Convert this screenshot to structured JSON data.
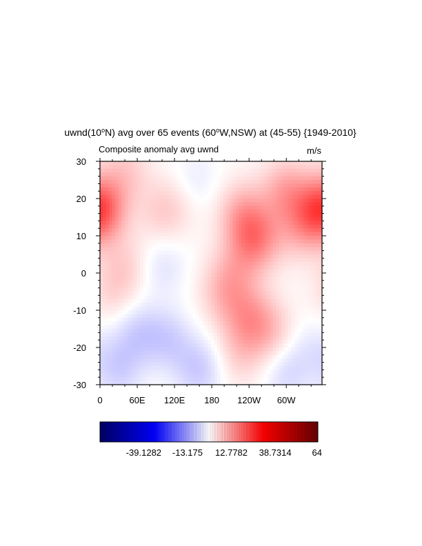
{
  "chart_data": {
    "type": "heatmap",
    "title_prefix": "uwnd(10",
    "title_degree": "o",
    "title_mid": "N) avg over 65 events (60",
    "title_degree2": "o",
    "title_suffix": "W,NSW) at (45-55) {1949-2010}",
    "left_subtitle": "Composite anomaly avg uwnd",
    "right_subtitle": "m/s",
    "x_ticks": [
      "0",
      "60E",
      "120E",
      "180",
      "120W",
      "60W"
    ],
    "x_tick_lon": [
      0,
      60,
      120,
      180,
      240,
      300
    ],
    "x_range": [
      0,
      357.5
    ],
    "y_ticks": [
      "30",
      "20",
      "10",
      "0",
      "-10",
      "-20",
      "-30"
    ],
    "y_tick_vals": [
      30,
      20,
      10,
      0,
      -10,
      -20,
      -30
    ],
    "y_range": [
      -30,
      30
    ],
    "colorbar": {
      "labels": [
        "-39.1282",
        "-13.175",
        "12.7782",
        "38.7314",
        "64"
      ],
      "label_vals": [
        -39.1282,
        -13.175,
        12.7782,
        38.7314,
        64
      ],
      "range": [
        -65,
        64
      ],
      "colors": [
        "#000066",
        "#0000ff",
        "#ffffff",
        "#ff0000",
        "#660000"
      ]
    },
    "field_blobs": [
      {
        "lon": 0,
        "lat": 17,
        "v": 11
      },
      {
        "lon": 357,
        "lat": 17,
        "v": 11
      },
      {
        "lon": 40,
        "lat": 27,
        "v": 6
      },
      {
        "lon": 100,
        "lat": 16,
        "v": 5
      },
      {
        "lon": 130,
        "lat": 20,
        "v": 3
      },
      {
        "lon": 250,
        "lat": 9,
        "v": 14
      },
      {
        "lon": 230,
        "lat": 16,
        "v": 9
      },
      {
        "lon": 300,
        "lat": 22,
        "v": 10
      },
      {
        "lon": 320,
        "lat": 12,
        "v": 7
      },
      {
        "lon": 215,
        "lat": 0,
        "v": 6
      },
      {
        "lon": 200,
        "lat": -6,
        "v": 6
      },
      {
        "lon": 240,
        "lat": -12,
        "v": 10
      },
      {
        "lon": 275,
        "lat": -16,
        "v": 6
      },
      {
        "lon": 225,
        "lat": -22,
        "v": 5
      },
      {
        "lon": 40,
        "lat": 2,
        "v": 5
      },
      {
        "lon": 20,
        "lat": -6,
        "v": 4
      },
      {
        "lon": 150,
        "lat": 24,
        "v": -4
      },
      {
        "lon": 100,
        "lat": 2,
        "v": -4
      },
      {
        "lon": 60,
        "lat": -16,
        "v": -6
      },
      {
        "lon": 110,
        "lat": -18,
        "v": -6
      },
      {
        "lon": 30,
        "lat": -26,
        "v": -6
      },
      {
        "lon": 160,
        "lat": -26,
        "v": -7
      },
      {
        "lon": 300,
        "lat": -27,
        "v": -5
      },
      {
        "lon": 340,
        "lat": -20,
        "v": -3
      }
    ]
  }
}
